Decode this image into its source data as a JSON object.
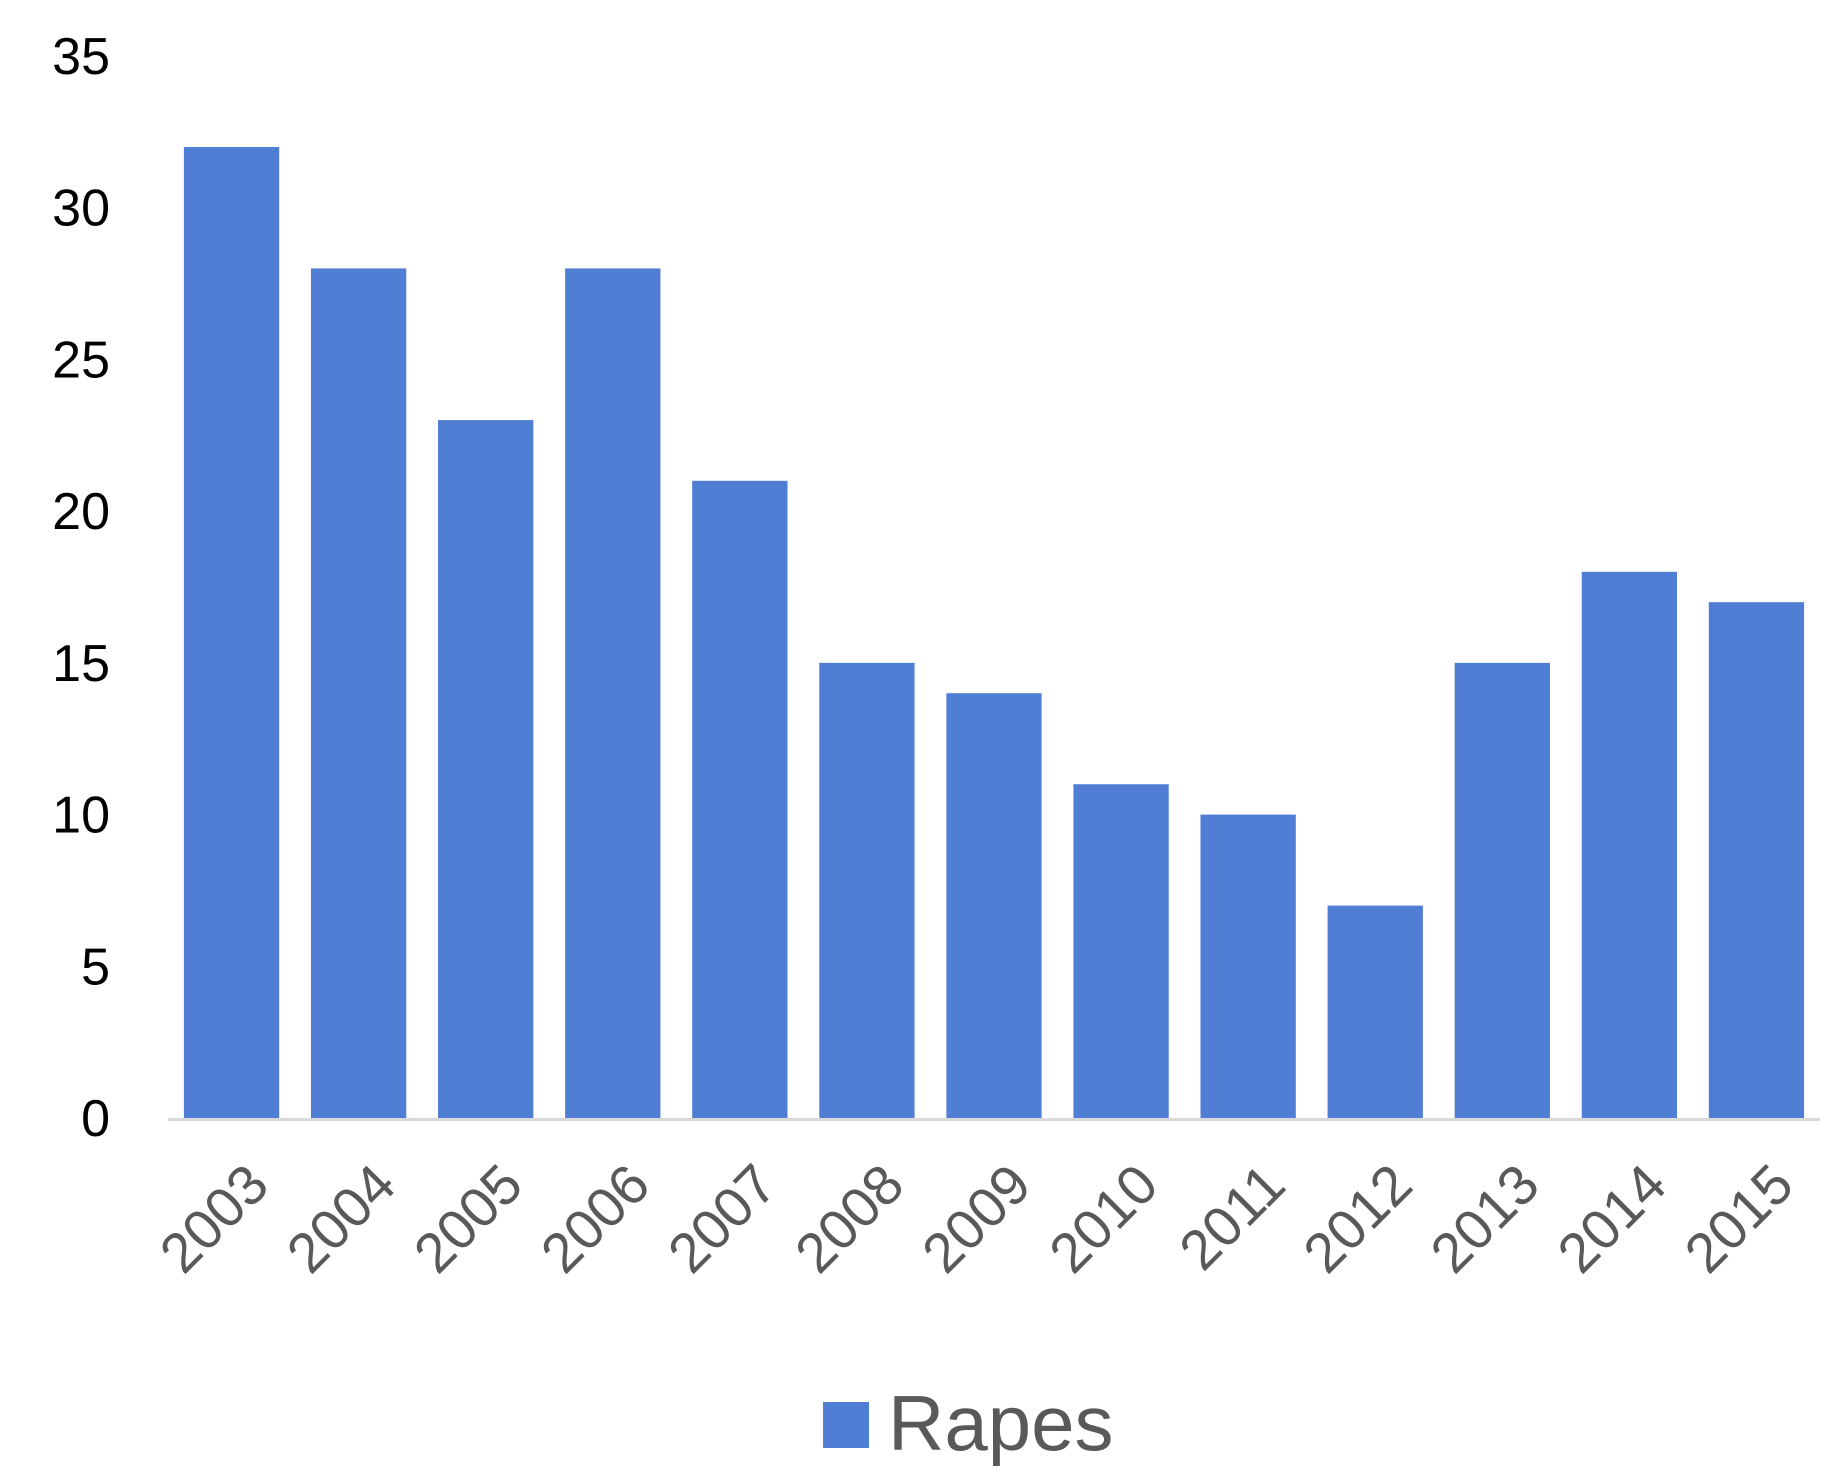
{
  "chart_data": {
    "type": "bar",
    "categories": [
      "2003",
      "2004",
      "2005",
      "2006",
      "2007",
      "2008",
      "2009",
      "2010",
      "2011",
      "2012",
      "2013",
      "2014",
      "2015"
    ],
    "series": [
      {
        "name": "Rapes",
        "values": [
          32,
          28,
          23,
          28,
          21,
          15,
          14,
          11,
          10,
          7,
          15,
          18,
          17
        ],
        "color": "#4f7ed4"
      }
    ],
    "ylim": [
      0,
      35
    ],
    "yticks": [
      "0",
      "5",
      "10",
      "15",
      "20",
      "25",
      "30",
      "35"
    ],
    "title": "",
    "xlabel": "",
    "ylabel": "",
    "grid": false,
    "legend": "bottom-center",
    "axis_color": "#d9d9d9"
  }
}
